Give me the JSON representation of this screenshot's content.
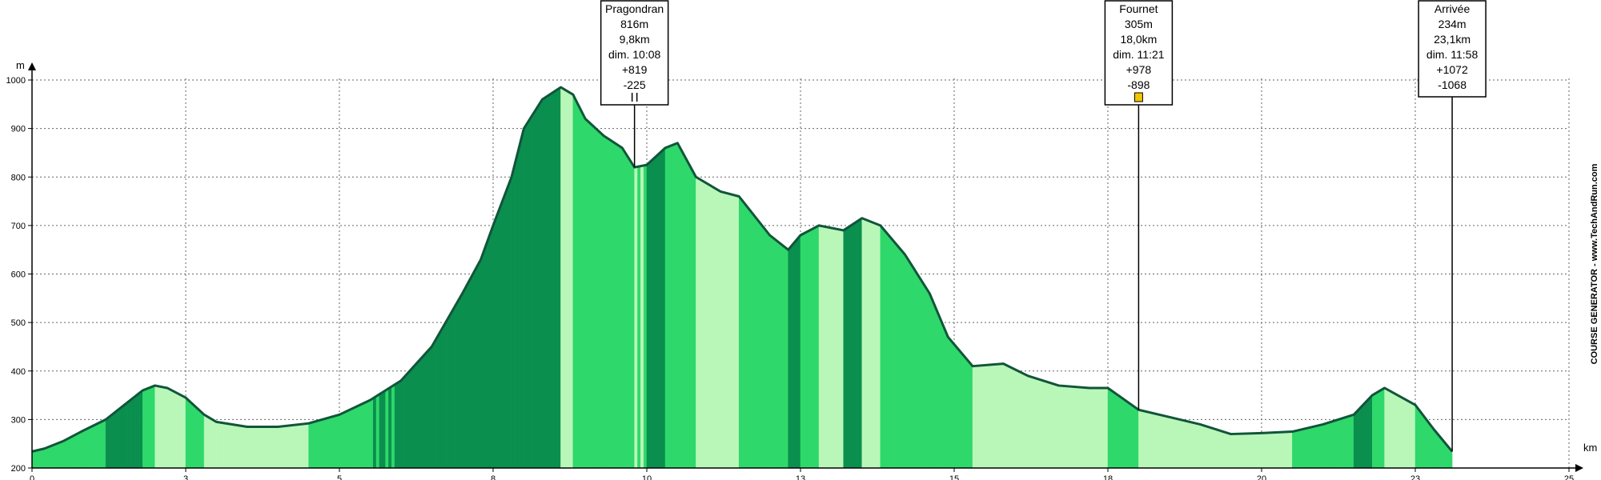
{
  "chart_data": {
    "type": "area",
    "title": "",
    "xlabel": "km",
    "ylabel": "m",
    "xlim": [
      0,
      25
    ],
    "ylim": [
      200,
      1000
    ],
    "grid": true,
    "x_ticks": [
      {
        "value": 0,
        "label": "0"
      },
      {
        "value": 2.5,
        "label": "3"
      },
      {
        "value": 5,
        "label": "5"
      },
      {
        "value": 7.5,
        "label": "8"
      },
      {
        "value": 10,
        "label": "10"
      },
      {
        "value": 12.5,
        "label": "13"
      },
      {
        "value": 15,
        "label": "15"
      },
      {
        "value": 17.5,
        "label": "18"
      },
      {
        "value": 20,
        "label": "20"
      },
      {
        "value": 22.5,
        "label": "23"
      },
      {
        "value": 25,
        "label": "25"
      }
    ],
    "y_ticks": [
      200,
      300,
      400,
      500,
      600,
      700,
      800,
      900,
      1000
    ],
    "x": [
      0,
      0.2,
      0.5,
      0.8,
      1.2,
      1.5,
      1.8,
      2.0,
      2.2,
      2.5,
      2.8,
      3.0,
      3.5,
      4.0,
      4.5,
      5.0,
      5.5,
      6.0,
      6.5,
      7.0,
      7.3,
      7.5,
      7.8,
      8.0,
      8.3,
      8.6,
      8.8,
      9.0,
      9.3,
      9.6,
      9.8,
      10.0,
      10.3,
      10.5,
      10.8,
      11.2,
      11.5,
      12.0,
      12.3,
      12.5,
      12.8,
      13.2,
      13.5,
      13.8,
      14.2,
      14.6,
      14.9,
      15.1,
      15.3,
      15.8,
      16.2,
      16.7,
      17.2,
      17.5,
      18.0,
      18.5,
      19.0,
      19.5,
      20.0,
      20.5,
      21.0,
      21.5,
      21.8,
      22.0,
      22.5,
      22.8,
      23.1
    ],
    "y": [
      234,
      240,
      255,
      275,
      300,
      330,
      360,
      370,
      365,
      345,
      310,
      295,
      285,
      285,
      292,
      310,
      340,
      380,
      450,
      560,
      630,
      700,
      800,
      900,
      960,
      985,
      970,
      920,
      885,
      860,
      820,
      825,
      860,
      870,
      800,
      770,
      760,
      680,
      650,
      680,
      700,
      690,
      715,
      700,
      640,
      560,
      470,
      440,
      410,
      415,
      390,
      370,
      365,
      365,
      320,
      305,
      290,
      270,
      272,
      275,
      290,
      310,
      350,
      365,
      330,
      280,
      234
    ],
    "waypoints": [
      {
        "name": "Pragondran",
        "km": 9.8,
        "lines": [
          "Pragondran",
          "816m",
          "9,8km",
          "dim. 10:08",
          "+819",
          "-225"
        ],
        "icon": "food-icon"
      },
      {
        "name": "Fournet",
        "km": 18.0,
        "lines": [
          "Fournet",
          "305m",
          "18,0km",
          "dim. 11:21",
          "+978",
          "-898"
        ],
        "icon": "drink-icon"
      },
      {
        "name": "Arrivée",
        "km": 23.1,
        "lines": [
          "Arrivée",
          "234m",
          "23,1km",
          "dim. 11:58",
          "+1072",
          "-1068"
        ],
        "icon": ""
      }
    ],
    "watermark": "COURSE GENERATOR - www.TechAndRun.com",
    "colors": {
      "line": "#11553a",
      "fill_light": "#b9f7b9",
      "fill_mid": "#2ed86a",
      "fill_dark": "#0a8f4e",
      "grid": "#666666"
    }
  }
}
